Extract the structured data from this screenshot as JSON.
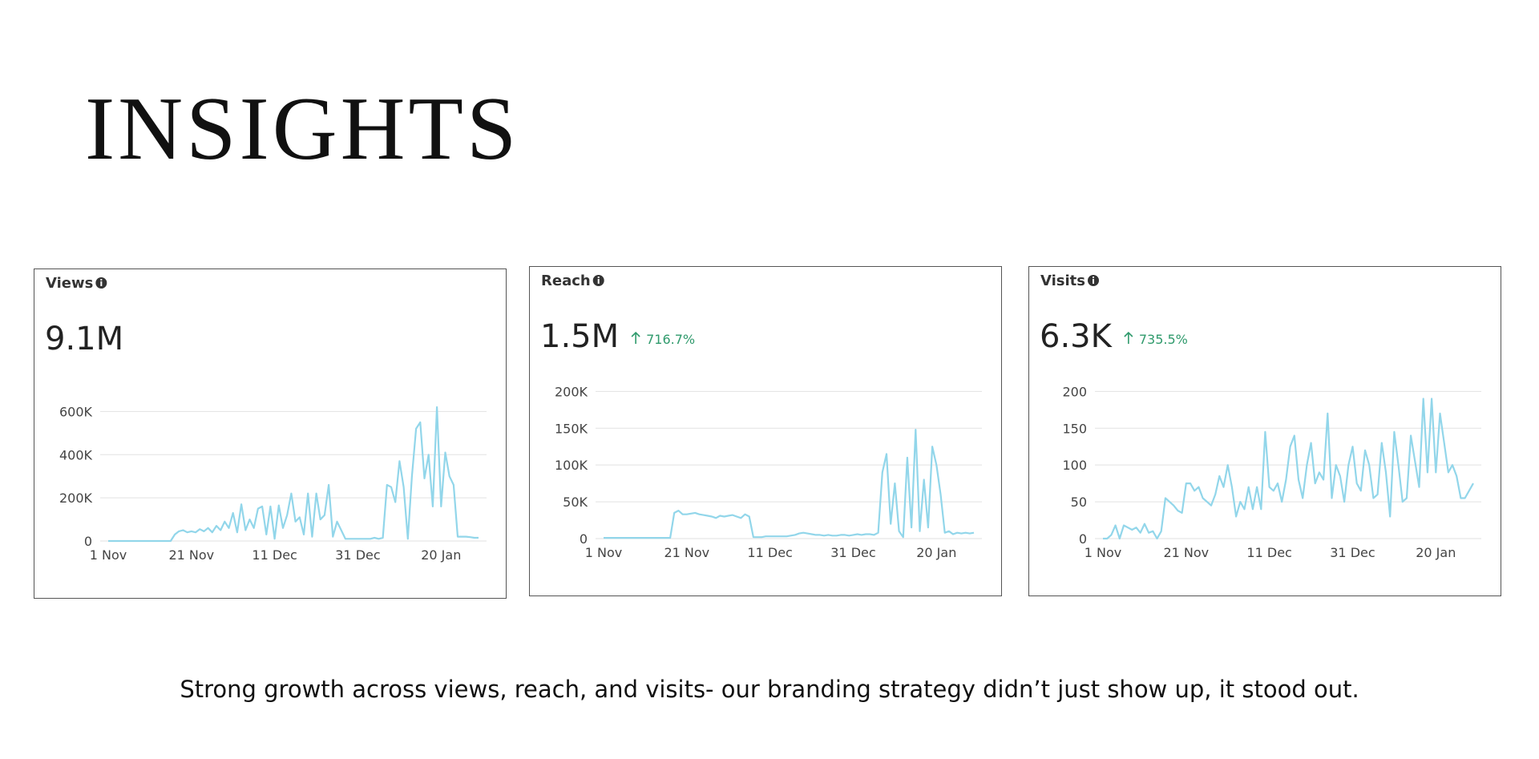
{
  "title": "INSIGHTS",
  "caption": "Strong growth across views, reach, and visits- our branding strategy didn’t just show up, it stood out.",
  "chart_data": [
    {
      "type": "line",
      "title": "Views",
      "headline": "9.1M",
      "color": "#92d6ea",
      "grid": true,
      "ylim": [
        0,
        750000
      ],
      "yticks": [
        0,
        {
          "value": 200000,
          "label": "200K"
        },
        {
          "value": 400000,
          "label": "400K"
        },
        {
          "value": 600000,
          "label": "600K"
        }
      ],
      "categories": [
        "1 Nov",
        null,
        null,
        null,
        null,
        null,
        null,
        null,
        null,
        null,
        null,
        null,
        null,
        null,
        null,
        null,
        null,
        null,
        null,
        null,
        "21 Nov",
        null,
        null,
        null,
        null,
        null,
        null,
        null,
        null,
        null,
        null,
        null,
        null,
        null,
        null,
        null,
        null,
        null,
        null,
        null,
        "11 Dec",
        null,
        null,
        null,
        null,
        null,
        null,
        null,
        null,
        null,
        null,
        null,
        null,
        null,
        null,
        null,
        null,
        null,
        null,
        null,
        "31 Dec",
        null,
        null,
        null,
        null,
        null,
        null,
        null,
        null,
        null,
        null,
        null,
        null,
        null,
        null,
        null,
        null,
        null,
        null,
        null,
        "20 Jan",
        null,
        null,
        null,
        null,
        null,
        null,
        null,
        null,
        null
      ],
      "values": [
        0,
        0,
        0,
        0,
        0,
        0,
        0,
        0,
        0,
        0,
        0,
        0,
        0,
        0,
        0,
        0,
        30000,
        45000,
        50000,
        40000,
        45000,
        40000,
        55000,
        45000,
        60000,
        40000,
        70000,
        50000,
        90000,
        60000,
        130000,
        40000,
        170000,
        50000,
        100000,
        60000,
        150000,
        160000,
        30000,
        160000,
        10000,
        165000,
        60000,
        120000,
        220000,
        90000,
        110000,
        30000,
        220000,
        20000,
        220000,
        100000,
        120000,
        260000,
        20000,
        90000,
        50000,
        10000,
        10000,
        10000,
        10000,
        10000,
        10000,
        10000,
        15000,
        10000,
        15000,
        260000,
        250000,
        180000,
        370000,
        250000,
        10000,
        300000,
        520000,
        550000,
        290000,
        400000,
        160000,
        620000,
        160000,
        410000,
        300000,
        260000,
        20000,
        20000,
        20000,
        18000,
        15000,
        15000
      ]
    },
    {
      "type": "line",
      "title": "Reach",
      "headline": "1.5M",
      "change": "716.7%",
      "color": "#92d6ea",
      "grid": true,
      "ylim": [
        0,
        220000
      ],
      "yticks": [
        0,
        {
          "value": 50000,
          "label": "50K"
        },
        {
          "value": 100000,
          "label": "100K"
        },
        {
          "value": 150000,
          "label": "150K"
        },
        {
          "value": 200000,
          "label": "200K"
        }
      ],
      "categories": [
        "1 Nov",
        null,
        null,
        null,
        null,
        null,
        null,
        null,
        null,
        null,
        null,
        null,
        null,
        null,
        null,
        null,
        null,
        null,
        null,
        null,
        "21 Nov",
        null,
        null,
        null,
        null,
        null,
        null,
        null,
        null,
        null,
        null,
        null,
        null,
        null,
        null,
        null,
        null,
        null,
        null,
        null,
        "11 Dec",
        null,
        null,
        null,
        null,
        null,
        null,
        null,
        null,
        null,
        null,
        null,
        null,
        null,
        null,
        null,
        null,
        null,
        null,
        null,
        "31 Dec",
        null,
        null,
        null,
        null,
        null,
        null,
        null,
        null,
        null,
        null,
        null,
        null,
        null,
        null,
        null,
        null,
        null,
        null,
        null,
        "20 Jan",
        null,
        null,
        null,
        null,
        null,
        null,
        null,
        null,
        null
      ],
      "values": [
        1000,
        1000,
        1000,
        1000,
        1000,
        1000,
        1000,
        1000,
        1000,
        1000,
        1000,
        1000,
        1000,
        1000,
        1000,
        1000,
        1000,
        35000,
        38000,
        33000,
        33000,
        34000,
        35000,
        33000,
        32000,
        31000,
        30000,
        28000,
        31000,
        30000,
        31000,
        32000,
        30000,
        28000,
        33000,
        30000,
        2000,
        2000,
        2000,
        3000,
        3000,
        3000,
        3000,
        3000,
        3000,
        4000,
        5000,
        7000,
        8000,
        7000,
        6000,
        5000,
        5000,
        4000,
        5000,
        4000,
        4000,
        5000,
        5000,
        4000,
        5000,
        6000,
        5000,
        6000,
        6000,
        5000,
        8000,
        90000,
        115000,
        20000,
        75000,
        10000,
        2000,
        110000,
        15000,
        148000,
        10000,
        80000,
        15000,
        125000,
        100000,
        60000,
        8000,
        10000,
        6000,
        8000,
        7000,
        8000,
        7000,
        8000
      ]
    },
    {
      "type": "line",
      "title": "Visits",
      "headline": "6.3K",
      "change": "735.5%",
      "color": "#92d6ea",
      "grid": true,
      "ylim": [
        0,
        220
      ],
      "yticks": [
        0,
        50,
        100,
        150,
        200
      ],
      "categories": [
        "1 Nov",
        null,
        null,
        null,
        null,
        null,
        null,
        null,
        null,
        null,
        null,
        null,
        null,
        null,
        null,
        null,
        null,
        null,
        null,
        null,
        "21 Nov",
        null,
        null,
        null,
        null,
        null,
        null,
        null,
        null,
        null,
        null,
        null,
        null,
        null,
        null,
        null,
        null,
        null,
        null,
        null,
        "11 Dec",
        null,
        null,
        null,
        null,
        null,
        null,
        null,
        null,
        null,
        null,
        null,
        null,
        null,
        null,
        null,
        null,
        null,
        null,
        null,
        "31 Dec",
        null,
        null,
        null,
        null,
        null,
        null,
        null,
        null,
        null,
        null,
        null,
        null,
        null,
        null,
        null,
        null,
        null,
        null,
        null,
        "20 Jan",
        null,
        null,
        null,
        null,
        null,
        null,
        null,
        null,
        null
      ],
      "values": [
        0,
        0,
        5,
        18,
        0,
        18,
        15,
        12,
        15,
        8,
        20,
        8,
        10,
        0,
        10,
        55,
        50,
        45,
        38,
        35,
        75,
        75,
        65,
        70,
        55,
        50,
        45,
        60,
        85,
        70,
        100,
        70,
        30,
        50,
        40,
        70,
        40,
        70,
        40,
        145,
        70,
        65,
        75,
        50,
        80,
        125,
        140,
        80,
        55,
        100,
        130,
        75,
        90,
        80,
        170,
        55,
        100,
        85,
        50,
        100,
        125,
        75,
        65,
        120,
        100,
        55,
        60,
        130,
        90,
        30,
        145,
        100,
        50,
        55,
        140,
        105,
        70,
        190,
        90,
        190,
        90,
        170,
        130,
        90,
        100,
        85,
        55,
        55,
        65,
        75
      ]
    }
  ]
}
